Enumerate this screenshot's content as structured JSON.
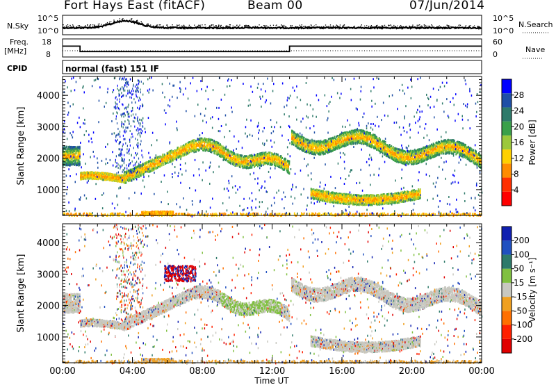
{
  "header": {
    "station": "Fort Hays East (fitACF)",
    "beam": "Beam 00",
    "date": "07/Jun/2014"
  },
  "side_labels": {
    "nsky": "N.Sky",
    "nsearch": "N.Search",
    "freq": "Freq.",
    "freq_unit": "[MHz]",
    "nave": "Nave",
    "cpid": "CPID",
    "cpid_text": "normal (fast) 151 IF"
  },
  "chart_data": [
    {
      "type": "line",
      "name": "noise",
      "left_axis": {
        "label": "N.Sky",
        "ticks": [
          "10^5",
          "10^0"
        ]
      },
      "right_axis": {
        "label": "N.Search",
        "ticks": [
          "10^5",
          "10^0"
        ]
      },
      "x_range_hours": [
        0,
        24
      ]
    },
    {
      "type": "line",
      "name": "frequency",
      "left_axis": {
        "label": "Freq. [MHz]",
        "ticks": [
          18,
          8
        ]
      },
      "right_axis": {
        "label": "Nave",
        "ticks": [
          60,
          0
        ]
      },
      "freq_steps": [
        {
          "x_hours": 0,
          "value": 14
        },
        {
          "x_hours": 1.0,
          "value": 11
        },
        {
          "x_hours": 13.0,
          "value": 14
        },
        {
          "x_hours": 24,
          "value": 14
        }
      ]
    },
    {
      "type": "heatmap",
      "name": "power",
      "ylabel": "Slant Range [km]",
      "yticks": [
        1000,
        2000,
        3000,
        4000
      ],
      "xticks": [
        "00:00",
        "04:00",
        "08:00",
        "12:00",
        "16:00",
        "20:00",
        "00:00"
      ],
      "colorbar_label": "Power [dB]",
      "colorbar_ticks": [
        "28",
        "24",
        "20",
        "16",
        "12",
        "8",
        "4"
      ],
      "colors": [
        "#0000ff",
        "#1f4fa6",
        "#2e7a6a",
        "#3aa04a",
        "#9cc83c",
        "#ffd000",
        "#ff8c00",
        "#ff3000",
        "#ff0000"
      ]
    },
    {
      "type": "heatmap",
      "name": "velocity",
      "ylabel": "Slant Range [km]",
      "yticks": [
        1000,
        2000,
        3000,
        4000
      ],
      "xticks": [
        "00:00",
        "04:00",
        "08:00",
        "12:00",
        "16:00",
        "20:00",
        "00:00"
      ],
      "xlabel": "Time UT",
      "colorbar_label": "Velocity [m s⁻¹]",
      "colorbar_ticks": [
        "200",
        "100",
        "50",
        "15",
        "-15",
        "-50",
        "-100",
        "-200"
      ],
      "colors": [
        "#1020b0",
        "#2050c0",
        "#2e7a6a",
        "#80c040",
        "#c8c8c0",
        "#f0a020",
        "#ff7000",
        "#ff2000",
        "#e00000"
      ]
    }
  ]
}
